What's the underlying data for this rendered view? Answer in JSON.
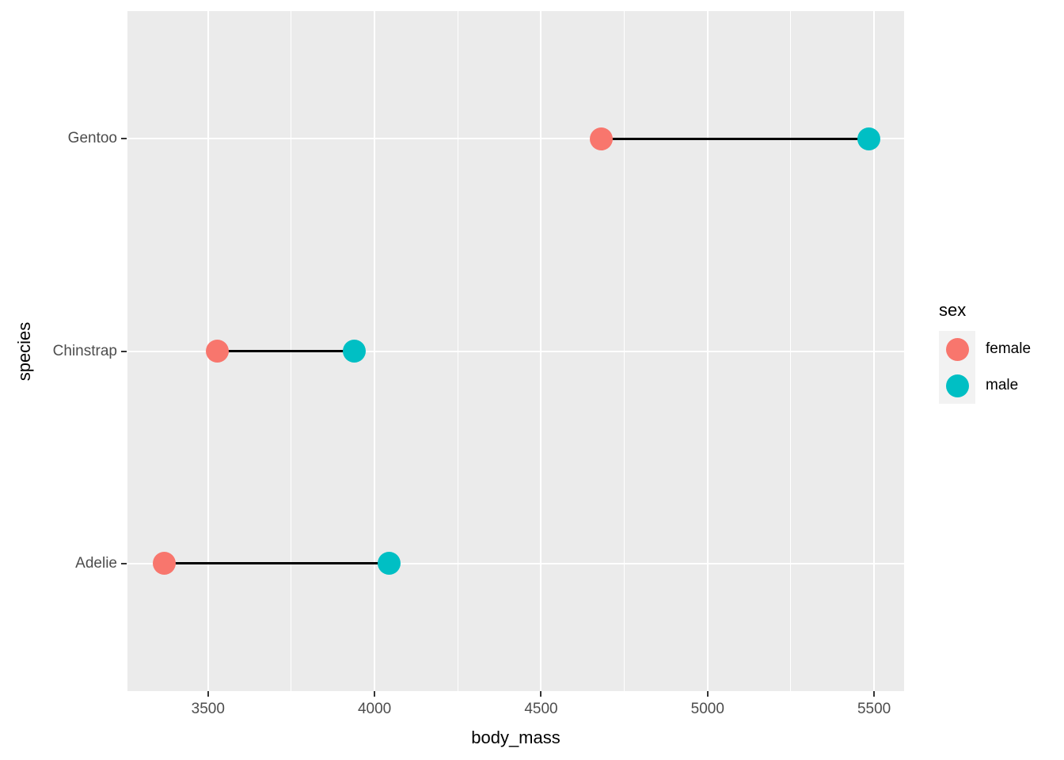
{
  "chart_data": {
    "type": "dumbbell",
    "orientation": "horizontal",
    "title": "",
    "xlabel": "body_mass",
    "ylabel": "species",
    "categories": [
      "Gentoo",
      "Chinstrap",
      "Adelie"
    ],
    "series": [
      {
        "name": "female",
        "color": "#F8766D",
        "values": [
          4680,
          3527,
          3369
        ]
      },
      {
        "name": "male",
        "color": "#00BFC4",
        "values": [
          5485,
          3939,
          4044
        ]
      }
    ],
    "connector_color": "#000000",
    "xlim": [
      3258,
      5590
    ],
    "x_major_ticks": [
      3500,
      4000,
      4500,
      5000,
      5500
    ],
    "x_minor_ticks": [
      3750,
      4250,
      4750,
      5250
    ],
    "grid": true,
    "panel_background": "#EBEBEB",
    "gridline_color": "#FFFFFF",
    "tick_mark_color": "#333333",
    "tick_label_color": "#4D4D4D",
    "axis_title_color": "#000000",
    "legend": {
      "title": "sex",
      "position": "right",
      "key_background": "#F2F2F2",
      "entries": [
        {
          "label": "female",
          "color": "#F8766D"
        },
        {
          "label": "male",
          "color": "#00BFC4"
        }
      ]
    }
  }
}
